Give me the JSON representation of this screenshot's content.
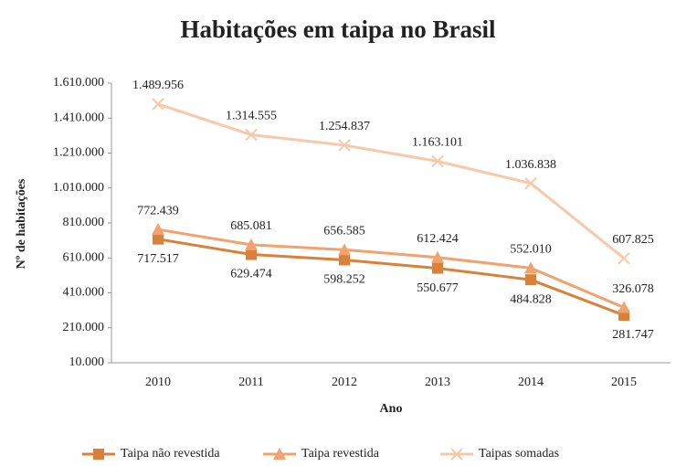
{
  "chart_data": {
    "type": "line",
    "title": "Habitações em taipa no Brasil",
    "x_label": "Ano",
    "y_label": "Nº de habitações",
    "categories": [
      "2010",
      "2011",
      "2012",
      "2013",
      "2014",
      "2015"
    ],
    "series": [
      {
        "name": "Taipa não revestida",
        "color": "#d9803a",
        "marker": "square",
        "values": [
          717517,
          629474,
          598252,
          550677,
          484828,
          281747
        ],
        "value_labels": [
          "717.517",
          "629.474",
          "598.252",
          "550.677",
          "484.828",
          "281.747"
        ]
      },
      {
        "name": "Taipa revestida",
        "color": "#f0a36f",
        "marker": "triangle",
        "values": [
          772439,
          685081,
          656585,
          612424,
          552010,
          326078
        ],
        "value_labels": [
          "772.439",
          "685.081",
          "656.585",
          "612.424",
          "552.010",
          "326.078"
        ]
      },
      {
        "name": "Taipas somadas",
        "color": "#f6c9aa",
        "marker": "x",
        "values": [
          1489956,
          1314555,
          1254837,
          1163101,
          1036838,
          607825
        ],
        "value_labels": [
          "1.489.956",
          "1.314.555",
          "1.254.837",
          "1.163.101",
          "1.036.838",
          "607.825"
        ]
      }
    ],
    "ylim": [
      10000,
      1610000
    ],
    "yticks": [
      {
        "value": 10000,
        "label": "10.000"
      },
      {
        "value": 210000,
        "label": "210.000"
      },
      {
        "value": 410000,
        "label": "410.000"
      },
      {
        "value": 610000,
        "label": "610.000"
      },
      {
        "value": 810000,
        "label": "810.000"
      },
      {
        "value": 1010000,
        "label": "1.010.000"
      },
      {
        "value": 1210000,
        "label": "1.210.000"
      },
      {
        "value": 1410000,
        "label": "1.410.000"
      },
      {
        "value": 1610000,
        "label": "1.610.000"
      }
    ],
    "grid": false,
    "legend": "bottom"
  }
}
